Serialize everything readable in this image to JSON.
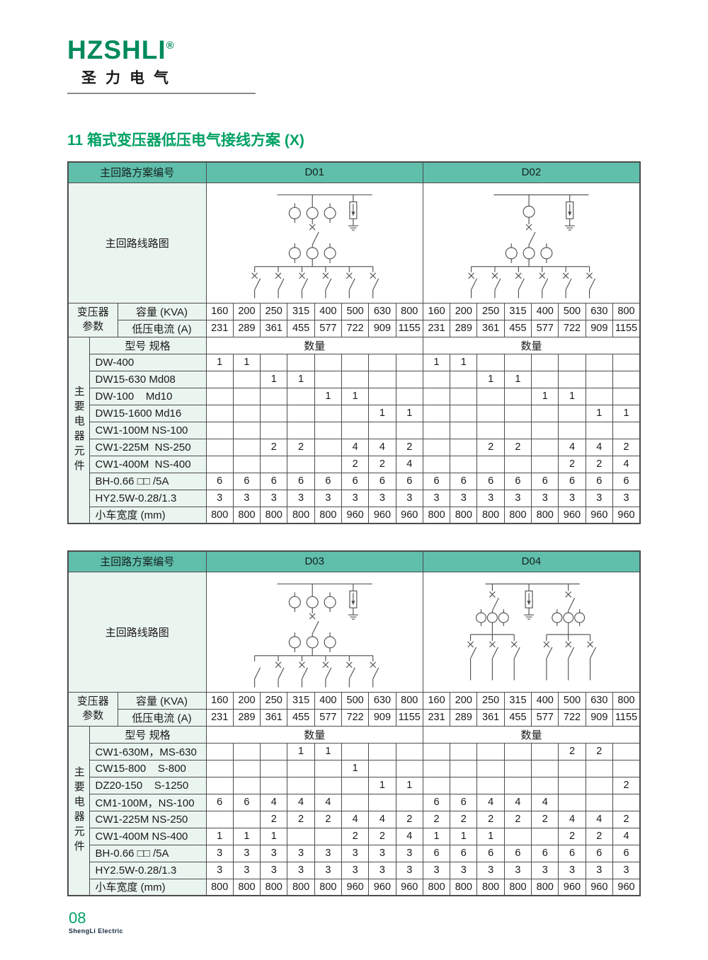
{
  "page": {
    "logo": "HZSHLI",
    "logo_registered": "®",
    "logo_subtitle": "圣力电气",
    "title": "11 箱式变压器低压电气接线方案 (X)",
    "footer": {
      "page_number": "08",
      "company": "ShengLi Electric"
    }
  },
  "colors": {
    "header_teal": "#5fbfab",
    "cell_mint": "#ebf5f0",
    "brand_green": "#008a5c",
    "title_green": "#00a164",
    "border": "#4d4d4d",
    "diagram_stroke": "#4a4a4a"
  },
  "labels": {
    "scheme_header": "主回路方案编号",
    "diagram": "主回路线路图",
    "transformer_params": "变压器参数",
    "capacity": "容量 (KVA)",
    "lv_current": "低压电流 (A)",
    "model_spec": "型号 规格",
    "quantity": "数量",
    "main_components": "主要电器元件",
    "cart_width": "小车宽度 (mm)"
  },
  "tables": [
    {
      "schemes": [
        "D01",
        "D02"
      ],
      "capacity_values": [
        "160",
        "200",
        "250",
        "315",
        "400",
        "500",
        "630",
        "800",
        "160",
        "200",
        "250",
        "315",
        "400",
        "500",
        "630",
        "800"
      ],
      "current_values": [
        "231",
        "289",
        "361",
        "455",
        "577",
        "722",
        "909",
        "1155",
        "231",
        "289",
        "361",
        "455",
        "577",
        "722",
        "909",
        "1155"
      ],
      "components": [
        {
          "name": "DW-400",
          "qty": [
            "1",
            "1",
            "",
            "",
            "",
            "",
            "",
            "",
            "1",
            "1",
            "",
            "",
            "",
            "",
            "",
            ""
          ]
        },
        {
          "name": "DW15-630 Md08",
          "qty": [
            "",
            "",
            "1",
            "1",
            "",
            "",
            "",
            "",
            "",
            "",
            "1",
            "1",
            "",
            "",
            "",
            ""
          ]
        },
        {
          "name": "DW-100    Md10",
          "qty": [
            "",
            "",
            "",
            "",
            "1",
            "1",
            "",
            "",
            "",
            "",
            "",
            "",
            "1",
            "1",
            "",
            ""
          ]
        },
        {
          "name": "DW15-1600 Md16",
          "qty": [
            "",
            "",
            "",
            "",
            "",
            "",
            "1",
            "1",
            "",
            "",
            "",
            "",
            "",
            "",
            "1",
            "1"
          ]
        },
        {
          "name": "CW1-100M NS-100",
          "qty": [
            "",
            "",
            "",
            "",
            "",
            "",
            "",
            "",
            "",
            "",
            "",
            "",
            "",
            "",
            "",
            ""
          ]
        },
        {
          "name": "CW1-225M  NS-250",
          "qty": [
            "",
            "",
            "2",
            "2",
            "",
            "4",
            "4",
            "2",
            "",
            "",
            "2",
            "2",
            "",
            "4",
            "4",
            "2"
          ]
        },
        {
          "name": "CW1-400M  NS-400",
          "qty": [
            "",
            "",
            "",
            "",
            "",
            "2",
            "2",
            "4",
            "",
            "",
            "",
            "",
            "",
            "2",
            "2",
            "4"
          ]
        },
        {
          "name": "BH-0.66 □□ /5A",
          "qty": [
            "6",
            "6",
            "6",
            "6",
            "6",
            "6",
            "6",
            "6",
            "6",
            "6",
            "6",
            "6",
            "6",
            "6",
            "6",
            "6"
          ]
        },
        {
          "name": "HY2.5W-0.28/1.3",
          "qty": [
            "3",
            "3",
            "3",
            "3",
            "3",
            "3",
            "3",
            "3",
            "3",
            "3",
            "3",
            "3",
            "3",
            "3",
            "3",
            "3"
          ]
        }
      ],
      "cart_widths": [
        "800",
        "800",
        "800",
        "800",
        "800",
        "960",
        "960",
        "960",
        "800",
        "800",
        "800",
        "800",
        "800",
        "960",
        "960",
        "960"
      ]
    },
    {
      "schemes": [
        "D03",
        "D04"
      ],
      "capacity_values": [
        "160",
        "200",
        "250",
        "315",
        "400",
        "500",
        "630",
        "800",
        "160",
        "200",
        "250",
        "315",
        "400",
        "500",
        "630",
        "800"
      ],
      "current_values": [
        "231",
        "289",
        "361",
        "455",
        "577",
        "722",
        "909",
        "1155",
        "231",
        "289",
        "361",
        "455",
        "577",
        "722",
        "909",
        "1155"
      ],
      "components": [
        {
          "name": "CW1-630M，MS-630",
          "qty": [
            "",
            "",
            "",
            "1",
            "1",
            "",
            "",
            "",
            "",
            "",
            "",
            "",
            "",
            "2",
            "2",
            ""
          ]
        },
        {
          "name": "CW15-800    S-800",
          "qty": [
            "",
            "",
            "",
            "",
            "",
            "1",
            "",
            "",
            "",
            "",
            "",
            "",
            "",
            "",
            "",
            ""
          ]
        },
        {
          "name": "DZ20-150    S-1250",
          "qty": [
            "",
            "",
            "",
            "",
            "",
            "",
            "1",
            "1",
            "",
            "",
            "",
            "",
            "",
            "",
            "",
            "2"
          ]
        },
        {
          "name": "CM1-100M，NS-100",
          "qty": [
            "6",
            "6",
            "4",
            "4",
            "4",
            "",
            "",
            "",
            "6",
            "6",
            "4",
            "4",
            "4",
            "",
            "",
            ""
          ]
        },
        {
          "name": "CW1-225M NS-250",
          "qty": [
            "",
            "",
            "2",
            "2",
            "2",
            "4",
            "4",
            "2",
            "2",
            "2",
            "2",
            "2",
            "2",
            "4",
            "4",
            "2"
          ]
        },
        {
          "name": "CW1-400M NS-400",
          "qty": [
            "1",
            "1",
            "1",
            "",
            "",
            "2",
            "2",
            "4",
            "1",
            "1",
            "1",
            "",
            "",
            "2",
            "2",
            "4"
          ]
        },
        {
          "name": "BH-0.66 □□ /5A",
          "qty": [
            "3",
            "3",
            "3",
            "3",
            "3",
            "3",
            "3",
            "3",
            "6",
            "6",
            "6",
            "6",
            "6",
            "6",
            "6",
            "6"
          ]
        },
        {
          "name": "HY2.5W-0.28/1.3",
          "qty": [
            "3",
            "3",
            "3",
            "3",
            "3",
            "3",
            "3",
            "3",
            "3",
            "3",
            "3",
            "3",
            "3",
            "3",
            "3",
            "3"
          ]
        }
      ],
      "cart_widths": [
        "800",
        "800",
        "800",
        "800",
        "800",
        "960",
        "960",
        "960",
        "800",
        "800",
        "800",
        "800",
        "800",
        "960",
        "960",
        "960"
      ]
    }
  ],
  "diagrams": {
    "D01": {
      "kind": "single",
      "top_ct_circles": 3,
      "lower_ct_circles": 3,
      "feeders": 6,
      "feeder_breaker_marks": [
        true,
        true,
        true,
        true,
        true,
        true
      ],
      "arrester": true
    },
    "D02": {
      "kind": "single",
      "top_ct_circles": 1,
      "lower_ct_circles": 3,
      "feeders": 6,
      "feeder_breaker_marks": [
        true,
        true,
        true,
        true,
        true,
        true
      ],
      "arrester": true
    },
    "D03": {
      "kind": "single",
      "top_ct_circles": 3,
      "lower_ct_circles": 3,
      "feeders": 6,
      "feeder_breaker_marks": [
        false,
        true,
        true,
        true,
        true,
        true
      ],
      "arrester": true
    },
    "D04": {
      "kind": "double",
      "branches": 2,
      "ct_circles_per_branch": 3,
      "feeders_per_branch": 3,
      "arrester": true
    }
  }
}
